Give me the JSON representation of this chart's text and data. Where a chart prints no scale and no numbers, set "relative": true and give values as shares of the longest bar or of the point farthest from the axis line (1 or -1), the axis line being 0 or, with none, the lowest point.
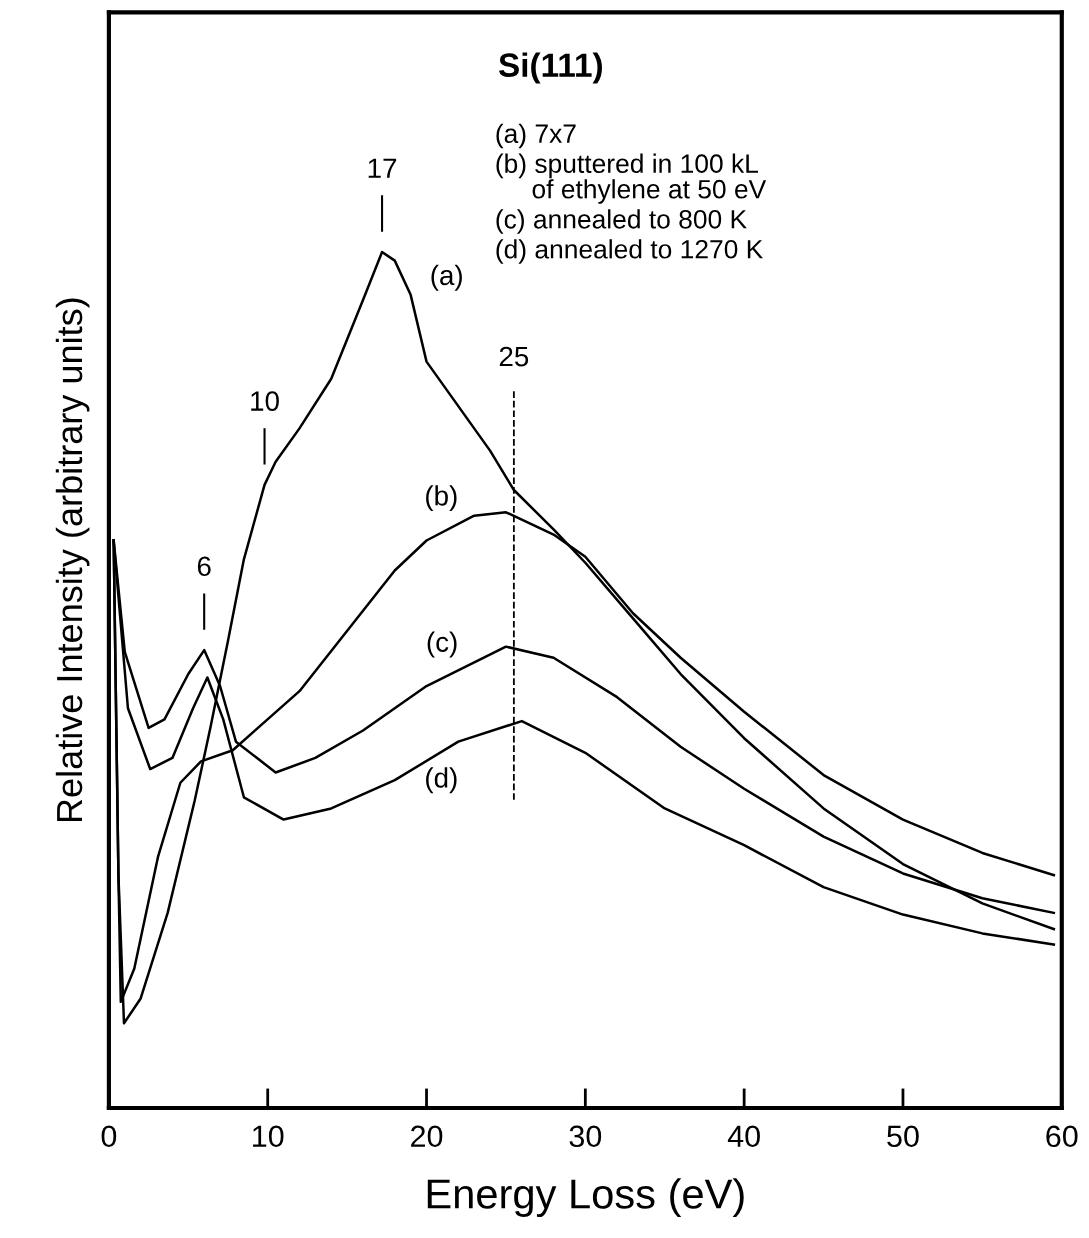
{
  "chart_data": {
    "type": "line",
    "relative": true,
    "title": "Si(111)",
    "xlabel": "Energy Loss (eV)",
    "ylabel": "Relative Intensity (arbitrary units)",
    "xlim": [
      0,
      60
    ],
    "xticks": [
      0,
      10,
      20,
      30,
      40,
      50,
      60
    ],
    "tick_labels": "x",
    "grid": false,
    "marker": "none",
    "line_style": "solid",
    "series": [
      {
        "name": "(a)",
        "color": "#000000",
        "x": [
          0.3,
          0.6,
          0.95,
          2,
          3.7,
          5.4,
          6.4,
          7.5,
          8.5,
          9.8,
          10.5,
          12,
          14,
          16,
          17.2,
          18,
          19,
          20,
          22,
          24,
          25.5,
          28,
          30,
          33,
          36,
          40,
          45,
          50,
          55,
          59.5
        ],
        "values": [
          0.663,
          0.272,
          0.099,
          0.128,
          0.228,
          0.359,
          0.445,
          0.546,
          0.641,
          0.728,
          0.755,
          0.794,
          0.852,
          0.944,
          1.0,
          0.99,
          0.95,
          0.872,
          0.82,
          0.768,
          0.722,
          0.676,
          0.637,
          0.572,
          0.507,
          0.432,
          0.35,
          0.285,
          0.239,
          0.209
        ]
      },
      {
        "name": "(b)",
        "color": "#000000",
        "x": [
          0.3,
          0.6,
          0.75,
          1.6,
          3.1,
          4.5,
          5.8,
          7.8,
          12,
          18,
          20,
          23,
          25,
          28,
          30,
          33,
          36,
          40,
          45,
          50,
          55,
          59.5
        ],
        "values": [
          0.663,
          0.272,
          0.124,
          0.163,
          0.294,
          0.38,
          0.405,
          0.418,
          0.487,
          0.628,
          0.663,
          0.692,
          0.696,
          0.67,
          0.644,
          0.578,
          0.526,
          0.463,
          0.389,
          0.337,
          0.298,
          0.272
        ]
      },
      {
        "name": "(c)",
        "color": "#000000",
        "x": [
          0.3,
          1,
          2.5,
          3.5,
          5,
          6,
          7,
          8,
          10.5,
          13,
          16,
          20,
          25,
          28,
          32,
          36,
          40,
          45,
          50,
          55,
          59.5
        ],
        "values": [
          0.663,
          0.533,
          0.444,
          0.454,
          0.507,
          0.535,
          0.493,
          0.428,
          0.392,
          0.409,
          0.441,
          0.493,
          0.539,
          0.526,
          0.48,
          0.422,
          0.373,
          0.317,
          0.274,
          0.245,
          0.228
        ]
      },
      {
        "name": "(d)",
        "color": "#000000",
        "x": [
          0.3,
          1.2,
          2.6,
          4,
          5.3,
          6.2,
          7.2,
          8.5,
          11,
          14,
          18,
          22,
          26,
          30,
          35,
          40,
          45,
          50,
          55,
          59.5
        ],
        "values": [
          0.663,
          0.467,
          0.396,
          0.409,
          0.467,
          0.503,
          0.454,
          0.363,
          0.337,
          0.35,
          0.383,
          0.428,
          0.452,
          0.415,
          0.35,
          0.307,
          0.258,
          0.226,
          0.204,
          0.191
        ]
      }
    ],
    "ref_lines": [
      {
        "axis": "x",
        "value": 25.5,
        "label": "25",
        "line_style": "dashed",
        "color": "#000000"
      }
    ],
    "annotations": [
      {
        "text": "6",
        "x": 6,
        "y": 0.535
      },
      {
        "text": "10",
        "x": 9.8,
        "y": 0.728
      },
      {
        "text": "17",
        "x": 17.2,
        "y": 1.0
      },
      "(a) 7x7",
      "(b) sputtered in 100 kL\n     of ethylene at 50 eV",
      "(c) annealed to 800 K",
      "(d) annealed to 1270 K"
    ]
  }
}
